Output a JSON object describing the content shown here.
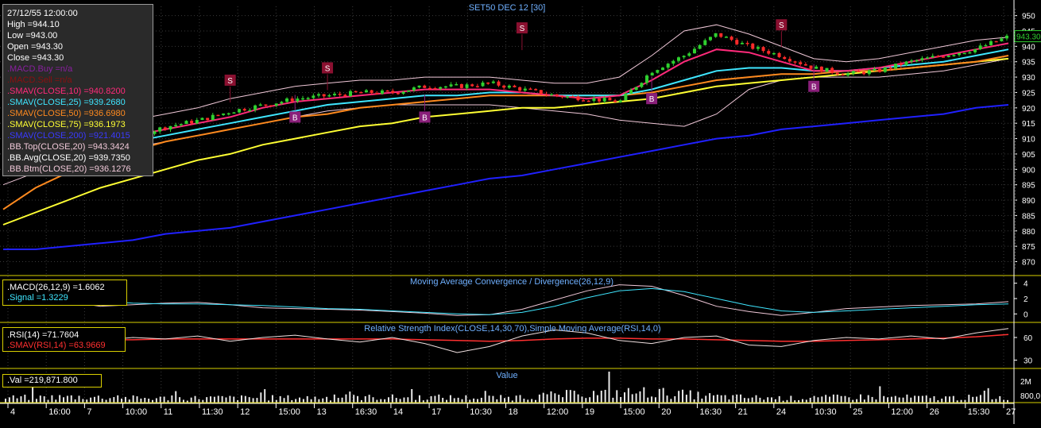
{
  "title": "SET50 DEC 12   [30]",
  "info": {
    "datetime": "27/12/55 12:00:00",
    "lines": [
      {
        "text": "High  =944.10",
        "color": "#ffffff"
      },
      {
        "text": "Low  =943.00",
        "color": "#ffffff"
      },
      {
        "text": "Open  =943.30",
        "color": "#ffffff"
      },
      {
        "text": "Close  =943.30",
        "color": "#ffffff"
      },
      {
        "text": ".MACD.Buy  =n/a",
        "color": "#8a1fa0"
      },
      {
        "text": ".MACD.Sell  =n/a",
        "color": "#8a1010"
      },
      {
        "text": ".SMAV(CLOSE,10)    =940.8200",
        "color": "#ff2a7a"
      },
      {
        "text": ".SMAV(CLOSE,25)    =939.2680",
        "color": "#3fe6ff"
      },
      {
        "text": ".SMAV(CLOSE,50)    =936.6980",
        "color": "#ff8a1f"
      },
      {
        "text": ".SMAV(CLOSE,75)    =936.1973",
        "color": "#ffff33"
      },
      {
        "text": ".SMAV(CLOSE,200)    =921.4015",
        "color": "#3a3aff"
      },
      {
        "text": ".BB.Top(CLOSE,20)    =943.3424",
        "color": "#f0c8d8"
      },
      {
        "text": ".BB.Avg(CLOSE,20)    =939.7350",
        "color": "#ffffff"
      },
      {
        "text": ".BB.Btm(CLOSE,20)    =936.1276",
        "color": "#f0c8d8"
      }
    ]
  },
  "price_axis": {
    "ticks": [
      "950",
      "945",
      "940",
      "935",
      "930",
      "925",
      "920",
      "915",
      "910",
      "905",
      "900",
      "895",
      "890",
      "885",
      "880",
      "875",
      "870"
    ],
    "current": "943.30"
  },
  "macd_panel": {
    "title": "Moving Average Convergence / Divergence(26,12,9)",
    "legend": [
      {
        "text": ".MACD(26,12,9)    =1.6062",
        "color": "#ffffff"
      },
      {
        "text": ".Signal    =1.3229",
        "color": "#3fe6ff"
      }
    ],
    "ticks": [
      "4",
      "2",
      "0"
    ]
  },
  "rsi_panel": {
    "title": "Relative Strength Index(CLOSE,14,30,70),Simple Moving Average(RSI,14,0)",
    "legend": [
      {
        "text": ".RSI(14)    =71.7604",
        "color": "#ffffff"
      },
      {
        "text": ".SMAV(RSI,14)    =63.9669",
        "color": "#ff3030"
      }
    ],
    "ticks": [
      "60",
      "30"
    ]
  },
  "vol_panel": {
    "title": "Value",
    "legend": [
      {
        "text": ".Val    =219,871.800",
        "color": "#ffffff"
      }
    ],
    "ticks": [
      "2M",
      "800,0"
    ]
  },
  "time_axis": [
    "4",
    "16:00",
    "7",
    "10:00",
    "11",
    "11:30",
    "12",
    "15:00",
    "13",
    "16:30",
    "14",
    "17",
    "10:30",
    "18",
    "12:00",
    "19",
    "15:00",
    "20",
    "16:30",
    "21",
    "24",
    "10:30",
    "25",
    "12:00",
    "26",
    "15:30",
    "27"
  ],
  "colors": {
    "background": "#000000",
    "grid": "#3a3a3a",
    "frame": "#d9cf00",
    "title": "#6fb0ff",
    "axis_text": "#ffffff",
    "candle_up": "#2fd02f",
    "candle_down": "#ff2a2a",
    "signal_box": "#8a1030",
    "buy_box": "#8a1f7a"
  },
  "chart_data": [
    {
      "type": "line",
      "title": "SET50 DEC 12   [30]",
      "ylim": [
        866,
        953
      ],
      "series": [
        {
          "name": "Close",
          "values": [
            905,
            908,
            907,
            910,
            911,
            914,
            916,
            919,
            921,
            923,
            924,
            925,
            925,
            927,
            927,
            928,
            926,
            924,
            923,
            922,
            932,
            937,
            944,
            940,
            937,
            933,
            931,
            932,
            935,
            937,
            939,
            943
          ]
        },
        {
          "name": ".SMAV(CLOSE,10)",
          "values": [
            906,
            907,
            908,
            909,
            911,
            913,
            915,
            917,
            920,
            922,
            923,
            924,
            925,
            926,
            926,
            926,
            925,
            924,
            923,
            924,
            929,
            935,
            939,
            938,
            935,
            932,
            932,
            933,
            935,
            937,
            939,
            941
          ]
        },
        {
          "name": ".SMAV(CLOSE,25)",
          "values": [
            903,
            905,
            906,
            908,
            909,
            911,
            913,
            915,
            917,
            919,
            921,
            922,
            923,
            924,
            924,
            925,
            925,
            924,
            924,
            924,
            926,
            929,
            932,
            933,
            933,
            932,
            932,
            933,
            934,
            935,
            937,
            939
          ]
        },
        {
          "name": ".SMAV(CLOSE,50)",
          "values": [
            887,
            894,
            899,
            903,
            906,
            909,
            911,
            913,
            915,
            917,
            918,
            920,
            921,
            922,
            923,
            924,
            924,
            924,
            924,
            924,
            925,
            927,
            929,
            930,
            931,
            931,
            932,
            932,
            933,
            934,
            935,
            937
          ]
        },
        {
          "name": ".SMAV(CLOSE,75)",
          "values": [
            882,
            886,
            890,
            894,
            897,
            900,
            903,
            905,
            908,
            910,
            912,
            914,
            915,
            917,
            918,
            919,
            920,
            920,
            921,
            922,
            923,
            925,
            927,
            928,
            929,
            930,
            931,
            932,
            933,
            934,
            935,
            936
          ]
        },
        {
          "name": ".SMAV(CLOSE,200)",
          "values": [
            874,
            874,
            875,
            876,
            877,
            879,
            880,
            881,
            883,
            885,
            887,
            889,
            891,
            893,
            895,
            897,
            898,
            900,
            902,
            904,
            906,
            908,
            910,
            911,
            913,
            914,
            915,
            916,
            917,
            918,
            920,
            921
          ]
        },
        {
          "name": ".BB.Top(CLOSE,20)",
          "values": [
            912,
            913,
            913,
            914,
            916,
            918,
            920,
            923,
            925,
            927,
            928,
            929,
            929,
            930,
            930,
            930,
            929,
            928,
            928,
            930,
            937,
            945,
            947,
            944,
            940,
            936,
            935,
            936,
            938,
            940,
            942,
            943
          ]
        },
        {
          "name": ".BB.Btm(CLOSE,20)",
          "values": [
            895,
            899,
            902,
            905,
            907,
            909,
            911,
            913,
            915,
            917,
            919,
            920,
            921,
            921,
            921,
            921,
            920,
            919,
            918,
            916,
            915,
            914,
            918,
            926,
            929,
            930,
            930,
            930,
            931,
            932,
            934,
            936
          ]
        }
      ],
      "signals": [
        {
          "type": "S",
          "x": 3,
          "price": 924
        },
        {
          "type": "B",
          "x": 4,
          "price": 902
        },
        {
          "type": "S",
          "x": 7,
          "price": 929
        },
        {
          "type": "B",
          "x": 9,
          "price": 917
        },
        {
          "type": "S",
          "x": 10,
          "price": 933
        },
        {
          "type": "B",
          "x": 13,
          "price": 917
        },
        {
          "type": "S",
          "x": 16,
          "price": 946
        },
        {
          "type": "B",
          "x": 20,
          "price": 923
        },
        {
          "type": "S",
          "x": 24,
          "price": 947
        },
        {
          "type": "B",
          "x": 25,
          "price": 927
        }
      ]
    },
    {
      "type": "line",
      "title": "Moving Average Convergence / Divergence(26,12,9)",
      "ylim": [
        -1,
        5
      ],
      "series": [
        {
          "name": ".MACD(26,12,9)",
          "values": [
            2.8,
            2.5,
            1.6,
            1.0,
            1.2,
            1.4,
            1.5,
            1.2,
            0.8,
            0.7,
            0.6,
            0.5,
            0.3,
            0.1,
            -0.2,
            -0.1,
            0.6,
            1.8,
            3.0,
            3.8,
            3.6,
            2.4,
            1.0,
            0.3,
            -0.2,
            0.2,
            0.7,
            0.9,
            1.1,
            1.2,
            1.3,
            1.6
          ]
        },
        {
          "name": ".Signal",
          "values": [
            2.6,
            2.6,
            2.2,
            1.7,
            1.4,
            1.3,
            1.3,
            1.2,
            1.1,
            0.9,
            0.7,
            0.6,
            0.4,
            0.2,
            0.0,
            -0.1,
            0.2,
            1.0,
            2.1,
            3.0,
            3.3,
            2.9,
            2.0,
            1.1,
            0.4,
            0.2,
            0.4,
            0.6,
            0.8,
            1.0,
            1.2,
            1.3
          ]
        }
      ]
    },
    {
      "type": "line",
      "title": "Relative Strength Index(CLOSE,14,30,70),Simple Moving Average(RSI,14,0)",
      "ylim": [
        20,
        80
      ],
      "series": [
        {
          "name": ".RSI(14)",
          "values": [
            58,
            52,
            48,
            56,
            60,
            58,
            62,
            55,
            60,
            63,
            58,
            54,
            60,
            52,
            40,
            48,
            62,
            70,
            66,
            56,
            52,
            60,
            62,
            50,
            48,
            56,
            60,
            58,
            62,
            58,
            66,
            71.76
          ]
        },
        {
          "name": ".SMAV(RSI,14)",
          "values": [
            60,
            58,
            57,
            57,
            57,
            58,
            58,
            58,
            58,
            58,
            58,
            58,
            58,
            57,
            56,
            55,
            56,
            58,
            59,
            59,
            58,
            58,
            57,
            56,
            55,
            55,
            56,
            57,
            58,
            59,
            61,
            63.97
          ]
        }
      ]
    },
    {
      "type": "bar",
      "title": "Value",
      "categories": [
        "4",
        "7",
        "11",
        "12",
        "13",
        "14",
        "17",
        "18",
        "19",
        "20",
        "21",
        "24",
        "25",
        "26",
        "27"
      ],
      "values": [
        0.5,
        0.6,
        0.45,
        0.5,
        0.5,
        0.55,
        0.55,
        0.5,
        0.9,
        1.1,
        0.6,
        0.45,
        0.6,
        0.5,
        0.55
      ]
    }
  ]
}
